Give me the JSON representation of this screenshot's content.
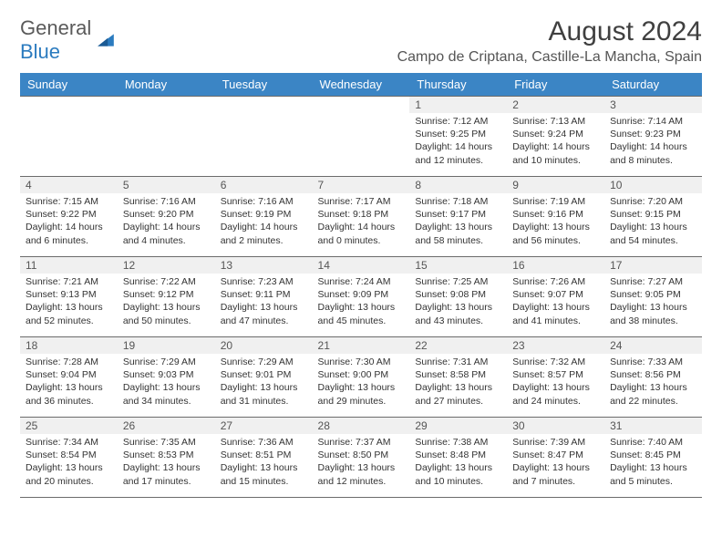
{
  "logo": {
    "text1": "General",
    "text2": "Blue"
  },
  "title": "August 2024",
  "location": "Campo de Criptana, Castille-La Mancha, Spain",
  "colors": {
    "header_bg": "#3b85c5",
    "header_fg": "#ffffff",
    "daynum_bg": "#f0f0f0",
    "border": "#6b6b6b",
    "text": "#333333",
    "logo_gray": "#5a5a5a",
    "logo_blue": "#2b7bbf"
  },
  "weekdays": [
    "Sunday",
    "Monday",
    "Tuesday",
    "Wednesday",
    "Thursday",
    "Friday",
    "Saturday"
  ],
  "weeks": [
    [
      null,
      null,
      null,
      null,
      {
        "n": "1",
        "sr": "7:12 AM",
        "ss": "9:25 PM",
        "dl": "14 hours and 12 minutes."
      },
      {
        "n": "2",
        "sr": "7:13 AM",
        "ss": "9:24 PM",
        "dl": "14 hours and 10 minutes."
      },
      {
        "n": "3",
        "sr": "7:14 AM",
        "ss": "9:23 PM",
        "dl": "14 hours and 8 minutes."
      }
    ],
    [
      {
        "n": "4",
        "sr": "7:15 AM",
        "ss": "9:22 PM",
        "dl": "14 hours and 6 minutes."
      },
      {
        "n": "5",
        "sr": "7:16 AM",
        "ss": "9:20 PM",
        "dl": "14 hours and 4 minutes."
      },
      {
        "n": "6",
        "sr": "7:16 AM",
        "ss": "9:19 PM",
        "dl": "14 hours and 2 minutes."
      },
      {
        "n": "7",
        "sr": "7:17 AM",
        "ss": "9:18 PM",
        "dl": "14 hours and 0 minutes."
      },
      {
        "n": "8",
        "sr": "7:18 AM",
        "ss": "9:17 PM",
        "dl": "13 hours and 58 minutes."
      },
      {
        "n": "9",
        "sr": "7:19 AM",
        "ss": "9:16 PM",
        "dl": "13 hours and 56 minutes."
      },
      {
        "n": "10",
        "sr": "7:20 AM",
        "ss": "9:15 PM",
        "dl": "13 hours and 54 minutes."
      }
    ],
    [
      {
        "n": "11",
        "sr": "7:21 AM",
        "ss": "9:13 PM",
        "dl": "13 hours and 52 minutes."
      },
      {
        "n": "12",
        "sr": "7:22 AM",
        "ss": "9:12 PM",
        "dl": "13 hours and 50 minutes."
      },
      {
        "n": "13",
        "sr": "7:23 AM",
        "ss": "9:11 PM",
        "dl": "13 hours and 47 minutes."
      },
      {
        "n": "14",
        "sr": "7:24 AM",
        "ss": "9:09 PM",
        "dl": "13 hours and 45 minutes."
      },
      {
        "n": "15",
        "sr": "7:25 AM",
        "ss": "9:08 PM",
        "dl": "13 hours and 43 minutes."
      },
      {
        "n": "16",
        "sr": "7:26 AM",
        "ss": "9:07 PM",
        "dl": "13 hours and 41 minutes."
      },
      {
        "n": "17",
        "sr": "7:27 AM",
        "ss": "9:05 PM",
        "dl": "13 hours and 38 minutes."
      }
    ],
    [
      {
        "n": "18",
        "sr": "7:28 AM",
        "ss": "9:04 PM",
        "dl": "13 hours and 36 minutes."
      },
      {
        "n": "19",
        "sr": "7:29 AM",
        "ss": "9:03 PM",
        "dl": "13 hours and 34 minutes."
      },
      {
        "n": "20",
        "sr": "7:29 AM",
        "ss": "9:01 PM",
        "dl": "13 hours and 31 minutes."
      },
      {
        "n": "21",
        "sr": "7:30 AM",
        "ss": "9:00 PM",
        "dl": "13 hours and 29 minutes."
      },
      {
        "n": "22",
        "sr": "7:31 AM",
        "ss": "8:58 PM",
        "dl": "13 hours and 27 minutes."
      },
      {
        "n": "23",
        "sr": "7:32 AM",
        "ss": "8:57 PM",
        "dl": "13 hours and 24 minutes."
      },
      {
        "n": "24",
        "sr": "7:33 AM",
        "ss": "8:56 PM",
        "dl": "13 hours and 22 minutes."
      }
    ],
    [
      {
        "n": "25",
        "sr": "7:34 AM",
        "ss": "8:54 PM",
        "dl": "13 hours and 20 minutes."
      },
      {
        "n": "26",
        "sr": "7:35 AM",
        "ss": "8:53 PM",
        "dl": "13 hours and 17 minutes."
      },
      {
        "n": "27",
        "sr": "7:36 AM",
        "ss": "8:51 PM",
        "dl": "13 hours and 15 minutes."
      },
      {
        "n": "28",
        "sr": "7:37 AM",
        "ss": "8:50 PM",
        "dl": "13 hours and 12 minutes."
      },
      {
        "n": "29",
        "sr": "7:38 AM",
        "ss": "8:48 PM",
        "dl": "13 hours and 10 minutes."
      },
      {
        "n": "30",
        "sr": "7:39 AM",
        "ss": "8:47 PM",
        "dl": "13 hours and 7 minutes."
      },
      {
        "n": "31",
        "sr": "7:40 AM",
        "ss": "8:45 PM",
        "dl": "13 hours and 5 minutes."
      }
    ]
  ],
  "labels": {
    "sunrise": "Sunrise: ",
    "sunset": "Sunset: ",
    "daylight": "Daylight: "
  }
}
